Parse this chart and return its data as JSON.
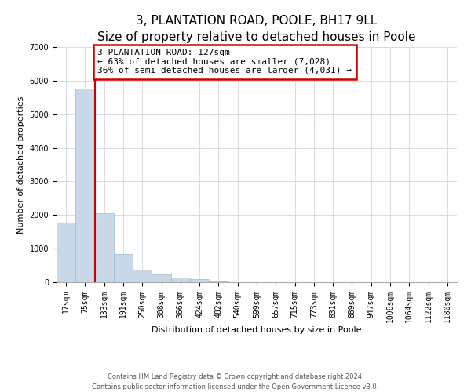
{
  "title": "3, PLANTATION ROAD, POOLE, BH17 9LL",
  "subtitle": "Size of property relative to detached houses in Poole",
  "xlabel": "Distribution of detached houses by size in Poole",
  "ylabel": "Number of detached properties",
  "bar_labels": [
    "17sqm",
    "75sqm",
    "133sqm",
    "191sqm",
    "250sqm",
    "308sqm",
    "366sqm",
    "424sqm",
    "482sqm",
    "540sqm",
    "599sqm",
    "657sqm",
    "715sqm",
    "773sqm",
    "831sqm",
    "889sqm",
    "947sqm",
    "1006sqm",
    "1064sqm",
    "1122sqm",
    "1180sqm"
  ],
  "bar_values": [
    1780,
    5760,
    2050,
    830,
    370,
    225,
    130,
    90,
    30,
    10,
    5,
    0,
    0,
    0,
    0,
    0,
    0,
    0,
    0,
    0,
    0
  ],
  "bar_color": "#c8d8e8",
  "bar_edge_color": "#a0b8cc",
  "property_line_x": 2,
  "annotation_title": "3 PLANTATION ROAD: 127sqm",
  "annotation_line1": "← 63% of detached houses are smaller (7,028)",
  "annotation_line2": "36% of semi-detached houses are larger (4,031) →",
  "annotation_box_color": "#ffffff",
  "annotation_box_edge_color": "#cc0000",
  "vline_color": "#cc0000",
  "ylim": [
    0,
    7000
  ],
  "grid_color": "#d0d8e0",
  "footer_line1": "Contains HM Land Registry data © Crown copyright and database right 2024.",
  "footer_line2": "Contains public sector information licensed under the Open Government Licence v3.0.",
  "fig_bg_color": "#ffffff",
  "title_fontsize": 11,
  "axis_label_fontsize": 8,
  "tick_fontsize": 7,
  "annotation_fontsize": 8
}
